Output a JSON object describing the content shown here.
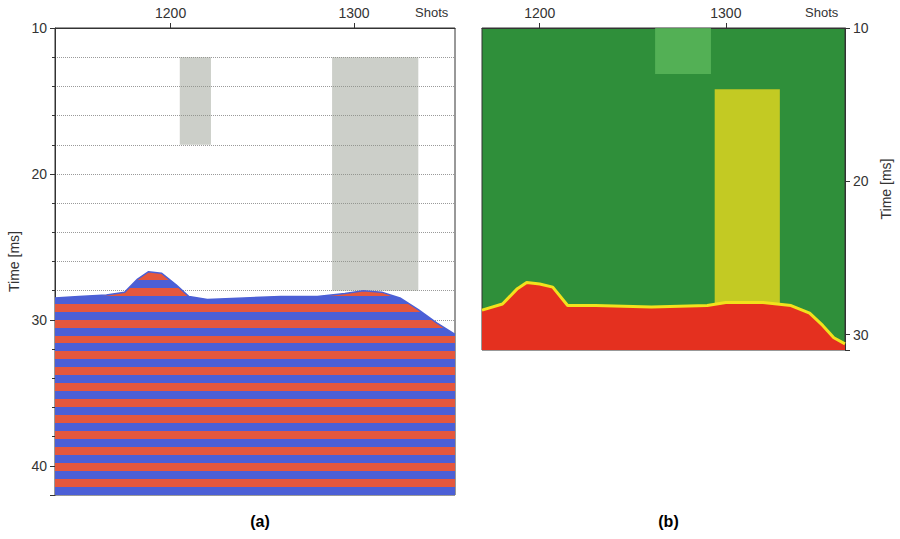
{
  "chart_data": [
    {
      "type": "area",
      "title": "(a)",
      "x_label": "Shots",
      "y_label": "Time [ms]",
      "xlim": [
        1137,
        1355
      ],
      "xticks": [
        1200,
        1300
      ],
      "ylim": [
        10,
        42
      ],
      "yticks": [
        10,
        20,
        30,
        40
      ],
      "grid": true,
      "x": [
        1137,
        1150,
        1165,
        1175,
        1182,
        1188,
        1195,
        1203,
        1210,
        1220,
        1240,
        1260,
        1280,
        1295,
        1305,
        1315,
        1325,
        1335,
        1345,
        1355
      ],
      "values": [
        28.5,
        28.4,
        28.3,
        28.1,
        27.2,
        26.7,
        26.8,
        27.6,
        28.4,
        28.6,
        28.5,
        28.4,
        28.4,
        28.2,
        28.0,
        28.1,
        28.5,
        29.3,
        30.2,
        31.0
      ],
      "colors": [
        "#e4573d",
        "#4b5fd6"
      ],
      "zones": [
        {
          "x": [
            1288,
            1335
          ],
          "y": [
            12,
            28
          ],
          "color": "#8f9488"
        },
        {
          "x": [
            1205,
            1222
          ],
          "y": [
            12,
            18
          ],
          "color": "#8f9488"
        }
      ]
    },
    {
      "type": "area",
      "title": "(b)",
      "x_label": "Shots",
      "y_label": "Time [ms]",
      "xlim": [
        1169,
        1364
      ],
      "xticks": [
        1200,
        1300
      ],
      "ylim": [
        10,
        31
      ],
      "yticks": [
        10,
        20,
        30
      ],
      "grid": false,
      "x": [
        1169,
        1180,
        1188,
        1193,
        1200,
        1207,
        1215,
        1230,
        1260,
        1290,
        1300,
        1320,
        1335,
        1345,
        1352,
        1358,
        1364
      ],
      "values": [
        28.4,
        28.0,
        27.0,
        26.6,
        26.7,
        26.9,
        28.1,
        28.1,
        28.2,
        28.1,
        27.9,
        27.9,
        28.1,
        28.6,
        29.4,
        30.2,
        30.6
      ],
      "colors": [
        "#e4301f",
        "#f2e21c"
      ],
      "zones": [
        {
          "x": [
            1294,
            1329
          ],
          "y": [
            14,
            28
          ],
          "color": "#e8d81e"
        },
        {
          "x": [
            1262,
            1292
          ],
          "y": [
            10,
            13
          ],
          "color": "#5cb85c"
        }
      ]
    }
  ]
}
